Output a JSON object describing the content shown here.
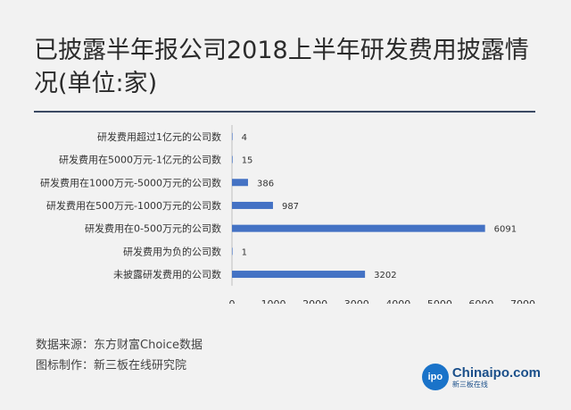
{
  "title": "已披露半年报公司2018上半年研发费用披露情况(单位:家)",
  "footnotes": {
    "source": "数据来源：东方财富Choice数据",
    "made_by": "图标制作：新三板在线研究院"
  },
  "logo": {
    "badge": "ipo",
    "text": "Chinaipo.com",
    "subtext": "新三板在线"
  },
  "colors": {
    "bar": "#4472c4",
    "rule": "#3b4a63",
    "logo": "#1a73c9"
  },
  "chart_data": {
    "type": "bar",
    "orientation": "horizontal",
    "categories": [
      "研发费用超过1亿元的公司数",
      "研发费用在5000万元-1亿元的公司数",
      "研发费用在1000万元-5000万元的公司数",
      "研发费用在500万元-1000万元的公司数",
      "研发费用在0-500万元的公司数",
      "研发费用为负的公司数",
      "未披露研发费用的公司数"
    ],
    "values": [
      4,
      15,
      386,
      987,
      6091,
      1,
      3202
    ],
    "xlim": [
      0,
      7000
    ],
    "xticks": [
      0,
      1000,
      2000,
      3000,
      4000,
      5000,
      6000,
      7000
    ],
    "grid": false,
    "legend": "none"
  }
}
